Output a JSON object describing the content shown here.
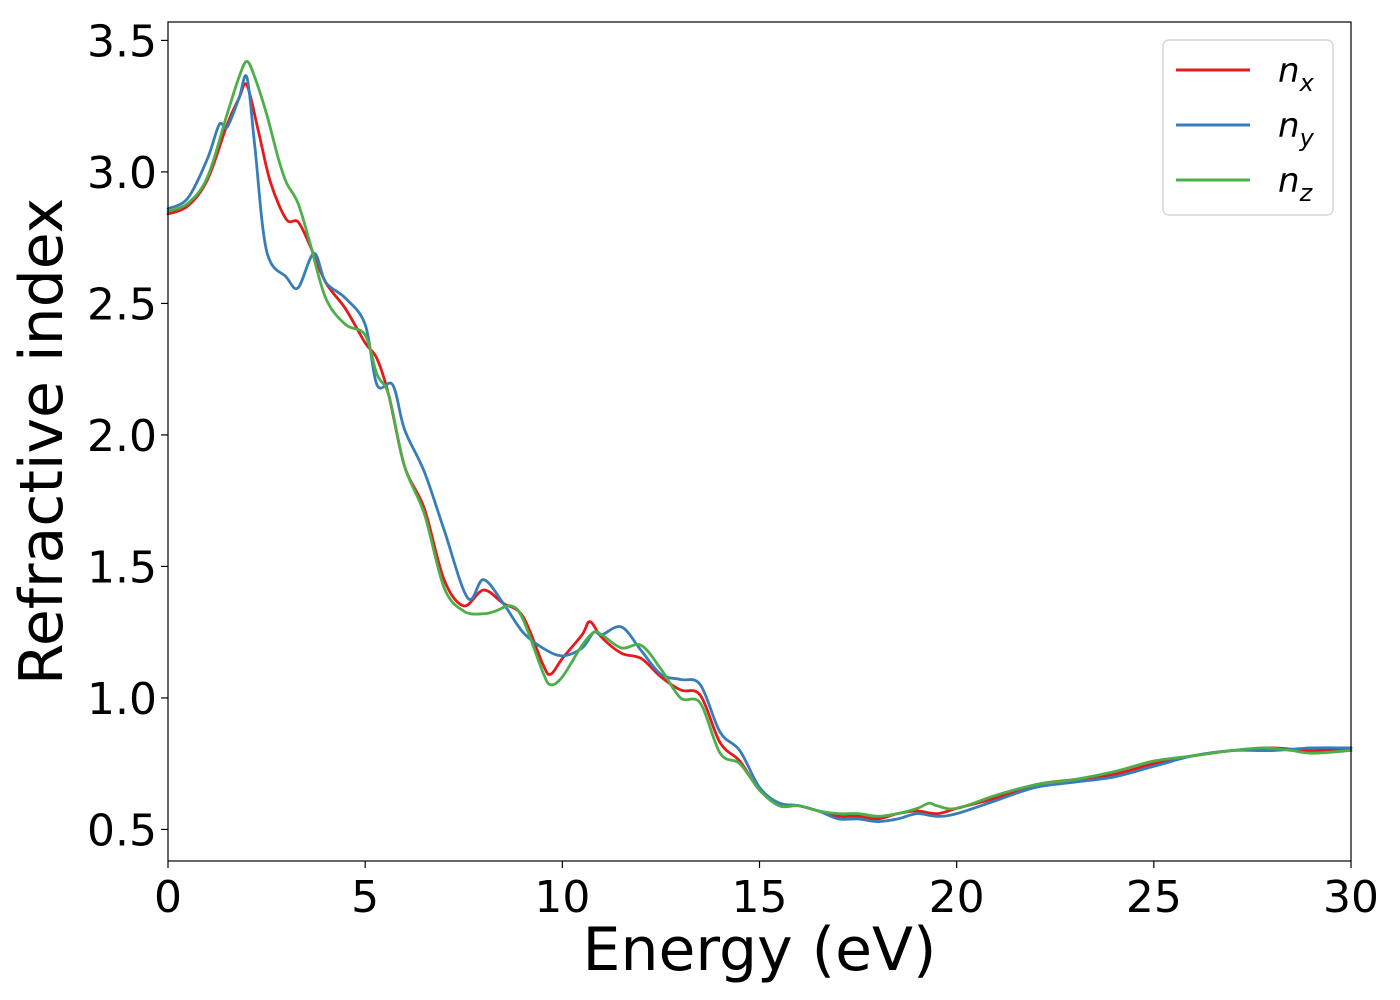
{
  "chart_data": {
    "type": "line",
    "title": "",
    "xlabel": "Energy (eV)",
    "ylabel": "Refractive index",
    "xlim": [
      0,
      30
    ],
    "ylim": [
      0.38,
      3.57
    ],
    "xticks": [
      0,
      5,
      10,
      15,
      20,
      25,
      30
    ],
    "xtick_labels": [
      "0",
      "5",
      "10",
      "15",
      "20",
      "25",
      "30"
    ],
    "yticks": [
      0.5,
      1.0,
      1.5,
      2.0,
      2.5,
      3.0,
      3.5
    ],
    "ytick_labels": [
      "0.5",
      "1.0",
      "1.5",
      "2.0",
      "2.5",
      "3.0",
      "3.5"
    ],
    "grid": false,
    "legend_position": "top-right",
    "series": [
      {
        "name": "n",
        "subscript": "x",
        "color": "#e41a1c",
        "x": [
          0,
          0.5,
          1.0,
          1.5,
          1.8,
          2.0,
          2.3,
          2.6,
          3.0,
          3.3,
          3.6,
          4.0,
          4.5,
          5.0,
          5.3,
          5.6,
          6.0,
          6.5,
          7.0,
          7.5,
          8.0,
          8.5,
          9.0,
          9.5,
          9.7,
          10.0,
          10.5,
          10.7,
          11.0,
          11.5,
          12.0,
          12.5,
          13.0,
          13.5,
          14.0,
          14.5,
          15.0,
          15.5,
          16.0,
          16.5,
          17.0,
          17.5,
          18.0,
          18.5,
          19.0,
          19.5,
          20.0,
          21.0,
          22.0,
          23.0,
          24.0,
          25.0,
          26.0,
          27.0,
          28.0,
          29.0,
          30.0
        ],
        "y": [
          2.84,
          2.87,
          2.97,
          3.18,
          3.28,
          3.33,
          3.15,
          2.96,
          2.82,
          2.81,
          2.72,
          2.58,
          2.48,
          2.35,
          2.29,
          2.15,
          1.88,
          1.72,
          1.45,
          1.35,
          1.41,
          1.36,
          1.31,
          1.13,
          1.09,
          1.15,
          1.24,
          1.29,
          1.23,
          1.17,
          1.15,
          1.08,
          1.03,
          1.01,
          0.83,
          0.76,
          0.65,
          0.6,
          0.59,
          0.57,
          0.55,
          0.55,
          0.54,
          0.56,
          0.57,
          0.56,
          0.58,
          0.62,
          0.67,
          0.69,
          0.71,
          0.75,
          0.78,
          0.8,
          0.81,
          0.8,
          0.81
        ]
      },
      {
        "name": "n",
        "subscript": "y",
        "color": "#377eb8",
        "x": [
          0,
          0.5,
          1.0,
          1.3,
          1.5,
          1.8,
          2.0,
          2.2,
          2.5,
          3.0,
          3.3,
          3.7,
          4.0,
          4.5,
          5.0,
          5.3,
          5.7,
          6.0,
          6.5,
          7.0,
          7.6,
          8.0,
          8.5,
          9.0,
          9.5,
          10.0,
          10.5,
          10.8,
          11.0,
          11.5,
          12.0,
          12.5,
          13.0,
          13.5,
          14.0,
          14.5,
          15.0,
          15.5,
          16.0,
          16.5,
          17.0,
          17.5,
          18.0,
          18.5,
          19.0,
          19.5,
          20.0,
          21.0,
          22.0,
          23.0,
          24.0,
          25.0,
          26.0,
          27.0,
          28.0,
          29.0,
          30.0
        ],
        "y": [
          2.86,
          2.9,
          3.05,
          3.18,
          3.17,
          3.28,
          3.36,
          3.1,
          2.7,
          2.6,
          2.56,
          2.69,
          2.58,
          2.52,
          2.42,
          2.19,
          2.19,
          2.02,
          1.86,
          1.64,
          1.38,
          1.45,
          1.36,
          1.25,
          1.19,
          1.16,
          1.19,
          1.25,
          1.24,
          1.27,
          1.18,
          1.09,
          1.07,
          1.05,
          0.87,
          0.8,
          0.66,
          0.6,
          0.59,
          0.57,
          0.54,
          0.54,
          0.53,
          0.54,
          0.56,
          0.55,
          0.56,
          0.61,
          0.66,
          0.68,
          0.7,
          0.74,
          0.78,
          0.8,
          0.8,
          0.81,
          0.81
        ]
      },
      {
        "name": "n",
        "subscript": "z",
        "color": "#4daf4a",
        "x": [
          0,
          0.5,
          1.0,
          1.5,
          1.8,
          2.0,
          2.2,
          2.5,
          2.8,
          3.0,
          3.3,
          3.6,
          4.0,
          4.5,
          5.0,
          5.3,
          5.6,
          6.0,
          6.5,
          7.0,
          7.5,
          8.0,
          8.3,
          8.7,
          9.0,
          9.5,
          9.7,
          10.0,
          10.5,
          10.8,
          11.0,
          11.5,
          12.0,
          12.5,
          13.0,
          13.5,
          14.0,
          14.5,
          15.0,
          15.5,
          16.0,
          16.5,
          17.0,
          17.5,
          18.0,
          18.5,
          19.0,
          19.3,
          19.5,
          20.0,
          21.0,
          22.0,
          23.0,
          24.0,
          25.0,
          26.0,
          27.0,
          27.8,
          28.5,
          29.0,
          30.0
        ],
        "y": [
          2.85,
          2.88,
          2.98,
          3.22,
          3.36,
          3.42,
          3.36,
          3.22,
          3.05,
          2.96,
          2.88,
          2.73,
          2.52,
          2.42,
          2.38,
          2.23,
          2.15,
          1.88,
          1.7,
          1.42,
          1.33,
          1.32,
          1.33,
          1.35,
          1.3,
          1.1,
          1.05,
          1.08,
          1.2,
          1.25,
          1.24,
          1.19,
          1.2,
          1.11,
          1.0,
          0.98,
          0.79,
          0.75,
          0.65,
          0.59,
          0.59,
          0.57,
          0.56,
          0.56,
          0.55,
          0.56,
          0.58,
          0.6,
          0.59,
          0.58,
          0.63,
          0.67,
          0.69,
          0.72,
          0.76,
          0.78,
          0.8,
          0.81,
          0.8,
          0.79,
          0.8
        ]
      }
    ]
  }
}
